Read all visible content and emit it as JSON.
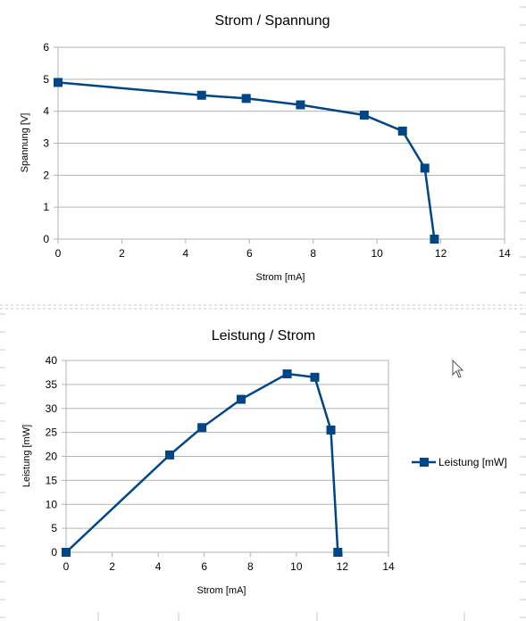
{
  "chart_data": [
    {
      "type": "line",
      "title": "Strom / Spannung",
      "xlabel": "Strom [mA]",
      "ylabel": "Spannung [V]",
      "xlim": [
        0,
        14
      ],
      "ylim": [
        0,
        6
      ],
      "xticks": [
        "0",
        "2",
        "4",
        "6",
        "8",
        "10",
        "12",
        "14"
      ],
      "yticks": [
        "0",
        "1",
        "2",
        "3",
        "4",
        "5",
        "6"
      ],
      "grid": true,
      "legend": "none",
      "color": "#004586",
      "series": [
        {
          "x": [
            0,
            4.5,
            5.9,
            7.6,
            9.6,
            10.8,
            11.5,
            11.8
          ],
          "y": [
            4.9,
            4.5,
            4.4,
            4.2,
            3.88,
            3.38,
            2.22,
            0
          ]
        }
      ]
    },
    {
      "type": "line",
      "title": "Leistung / Strom",
      "xlabel": "Strom [mA]",
      "ylabel": "Leistung [mW]",
      "xlim": [
        0,
        14
      ],
      "ylim": [
        0,
        40
      ],
      "xticks": [
        "0",
        "2",
        "4",
        "6",
        "8",
        "10",
        "12",
        "14"
      ],
      "yticks": [
        "0",
        "5",
        "10",
        "15",
        "20",
        "25",
        "30",
        "35",
        "40"
      ],
      "grid": true,
      "legend": "right",
      "color": "#004586",
      "series": [
        {
          "name": "Leistung [mW]",
          "x": [
            0,
            4.5,
            5.9,
            7.6,
            9.6,
            10.8,
            11.5,
            11.8
          ],
          "y": [
            0,
            20.3,
            26.0,
            31.9,
            37.2,
            36.5,
            25.5,
            0
          ]
        }
      ]
    }
  ]
}
